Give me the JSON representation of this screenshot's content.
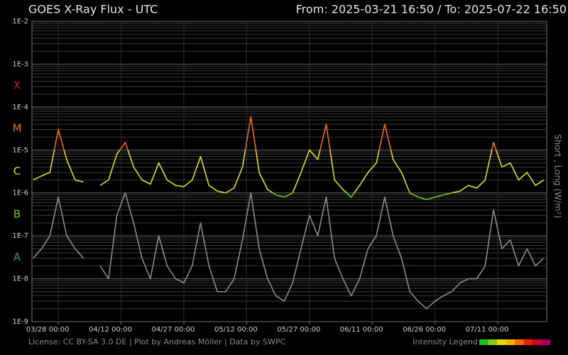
{
  "chart_data": {
    "type": "line",
    "title": "GOES X-Ray Flux - UTC",
    "range_label": "From: 2025-03-21 16:50  /  To: 2025-07-22 16:50",
    "ylabel": "Short , Long (W/m²)",
    "footer": "License: CC BY-SA 3.0 DE | Plot by Andreas Möller | Data by SWPC",
    "log_scale": true,
    "grid": true,
    "xlim": [
      "2025-03-21 16:50",
      "2025-07-22 16:50"
    ],
    "xticks": [
      {
        "value": "2025-03-28 00:00",
        "label": "03/28 00:00"
      },
      {
        "value": "2025-04-12 00:00",
        "label": "04/12 00:00"
      },
      {
        "value": "2025-04-27 00:00",
        "label": "04/27 00:00"
      },
      {
        "value": "2025-05-12 00:00",
        "label": "05/12 00:00"
      },
      {
        "value": "2025-05-27 00:00",
        "label": "05/27 00:00"
      },
      {
        "value": "2025-06-11 00:00",
        "label": "06/11 00:00"
      },
      {
        "value": "2025-06-26 00:00",
        "label": "06/26 00:00"
      },
      {
        "value": "2025-07-11 00:00",
        "label": "07/11 00:00"
      }
    ],
    "ylim": [
      1e-09,
      0.01
    ],
    "yticks": [
      {
        "value": 0.01,
        "label": "1E-2"
      },
      {
        "value": 0.001,
        "label": "1E-3"
      },
      {
        "value": 0.0001,
        "label": "1E-4"
      },
      {
        "value": 1e-05,
        "label": "1E-5"
      },
      {
        "value": 1e-06,
        "label": "1E-6"
      },
      {
        "value": 1e-07,
        "label": "1E-7"
      },
      {
        "value": 1e-08,
        "label": "1E-8"
      },
      {
        "value": 1e-09,
        "label": "1E-9"
      }
    ],
    "classes": [
      {
        "label": "X",
        "min": 0.0001,
        "color": "#d01010"
      },
      {
        "label": "M",
        "min": 1e-05,
        "color": "#f06a10"
      },
      {
        "label": "C",
        "min": 1e-06,
        "color": "#dcdc20"
      },
      {
        "label": "B",
        "min": 1e-07,
        "color": "#66c820"
      },
      {
        "label": "A",
        "min": 1e-08,
        "color": "#22a822"
      }
    ],
    "intensity_legend": {
      "label": "Intensity Legend",
      "colors": [
        "#22bb22",
        "#88cc11",
        "#dddd00",
        "#ffb000",
        "#ff6a00",
        "#ee2200",
        "#cc0033",
        "#a00060"
      ]
    },
    "x": [
      "2025-03-22 00:00",
      "2025-03-24 00:00",
      "2025-03-26 00:00",
      "2025-03-28 00:00",
      "2025-03-30 00:00",
      "2025-04-01 00:00",
      "2025-04-03 00:00",
      "2025-04-05 00:00",
      "2025-04-07 00:00",
      "2025-04-09 00:00",
      "2025-04-11 00:00",
      "2025-04-13 00:00",
      "2025-04-15 00:00",
      "2025-04-17 00:00",
      "2025-04-19 00:00",
      "2025-04-21 00:00",
      "2025-04-23 00:00",
      "2025-04-25 00:00",
      "2025-04-27 00:00",
      "2025-04-29 00:00",
      "2025-05-01 00:00",
      "2025-05-03 00:00",
      "2025-05-05 00:00",
      "2025-05-07 00:00",
      "2025-05-09 00:00",
      "2025-05-11 00:00",
      "2025-05-13 00:00",
      "2025-05-15 00:00",
      "2025-05-17 00:00",
      "2025-05-19 00:00",
      "2025-05-21 00:00",
      "2025-05-23 00:00",
      "2025-05-25 00:00",
      "2025-05-27 00:00",
      "2025-05-29 00:00",
      "2025-05-31 00:00",
      "2025-06-02 00:00",
      "2025-06-04 00:00",
      "2025-06-06 00:00",
      "2025-06-08 00:00",
      "2025-06-10 00:00",
      "2025-06-12 00:00",
      "2025-06-14 00:00",
      "2025-06-16 00:00",
      "2025-06-18 00:00",
      "2025-06-20 00:00",
      "2025-06-22 00:00",
      "2025-06-24 00:00",
      "2025-06-26 00:00",
      "2025-06-28 00:00",
      "2025-06-30 00:00",
      "2025-07-02 00:00",
      "2025-07-04 00:00",
      "2025-07-06 00:00",
      "2025-07-08 00:00",
      "2025-07-10 00:00",
      "2025-07-12 00:00",
      "2025-07-14 00:00",
      "2025-07-16 00:00",
      "2025-07-18 00:00",
      "2025-07-20 00:00",
      "2025-07-22 00:00"
    ],
    "series": [
      {
        "color": "#8a8a8a",
        "values": [
          3e-08,
          5e-08,
          1e-07,
          8e-07,
          1e-07,
          5e-08,
          3e-08,
          null,
          2e-08,
          1e-08,
          3e-07,
          1e-06,
          2e-07,
          3e-08,
          1e-08,
          1e-07,
          2e-08,
          1e-08,
          8e-09,
          2e-08,
          2e-07,
          2e-08,
          5e-09,
          5e-09,
          1e-08,
          8e-08,
          1e-06,
          5e-08,
          1e-08,
          4e-09,
          3e-09,
          8e-09,
          5e-08,
          3e-07,
          1e-07,
          8e-07,
          3e-08,
          1e-08,
          4e-09,
          1e-08,
          5e-08,
          1e-07,
          8e-07,
          1e-07,
          3e-08,
          5e-09,
          3e-09,
          2e-09,
          3e-09,
          4e-09,
          5e-09,
          8e-09,
          1e-08,
          1e-08,
          2e-08,
          4e-07,
          5e-08,
          8e-08,
          2e-08,
          5e-08,
          2e-08,
          3e-08
        ]
      },
      {
        "color": "classes",
        "values": [
          2e-06,
          2.5e-06,
          3e-06,
          3e-05,
          6e-06,
          2e-06,
          1.8e-06,
          null,
          1.5e-06,
          2e-06,
          8e-06,
          1.5e-05,
          4e-06,
          2e-06,
          1.6e-06,
          5e-06,
          2e-06,
          1.5e-06,
          1.4e-06,
          2e-06,
          7e-06,
          1.5e-06,
          1.1e-06,
          1e-06,
          1.3e-06,
          4e-06,
          6e-05,
          3e-06,
          1.2e-06,
          9e-07,
          8e-07,
          1e-06,
          3e-06,
          1e-05,
          6e-06,
          4e-05,
          2e-06,
          1.2e-06,
          8e-07,
          1.5e-06,
          3e-06,
          5e-06,
          4e-05,
          6e-06,
          3e-06,
          1e-06,
          8e-07,
          7e-07,
          8e-07,
          9e-07,
          1e-06,
          1.1e-06,
          1.5e-06,
          1.3e-06,
          2e-06,
          1.5e-05,
          4e-06,
          5e-06,
          2e-06,
          3e-06,
          1.5e-06,
          2e-06
        ]
      }
    ]
  }
}
